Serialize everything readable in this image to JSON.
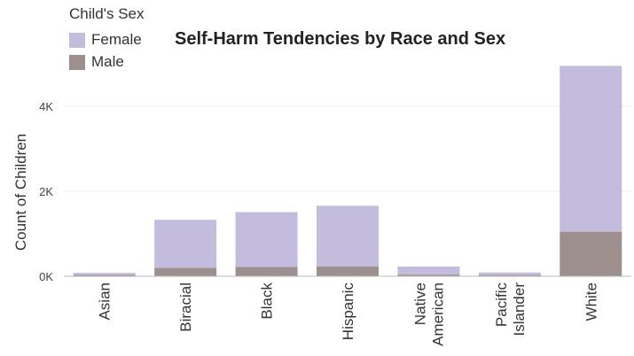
{
  "chart_data": {
    "type": "bar",
    "stacked": true,
    "title": "Self-Harm Tendencies by Race and Sex",
    "xlabel": "",
    "ylabel": "Count of Children",
    "ylim": [
      0,
      5000
    ],
    "yticks": [
      0,
      2000,
      4000
    ],
    "ytick_labels": [
      "0K",
      "2K",
      "4K"
    ],
    "grid": true,
    "legend": {
      "title": "Child's Sex",
      "position": "top-left"
    },
    "categories": [
      [
        "Asian"
      ],
      [
        "Biracial"
      ],
      [
        "Black"
      ],
      [
        "Hispanic"
      ],
      [
        "Native",
        "American"
      ],
      [
        "Pacific",
        "Islander"
      ],
      [
        "White"
      ]
    ],
    "series": [
      {
        "name": "Male",
        "color": "#9e8f8f",
        "values": [
          30,
          200,
          220,
          230,
          40,
          30,
          1050
        ]
      },
      {
        "name": "Female",
        "color": "#c3bcdc",
        "values": [
          50,
          1130,
          1290,
          1430,
          190,
          60,
          3900
        ]
      }
    ]
  }
}
